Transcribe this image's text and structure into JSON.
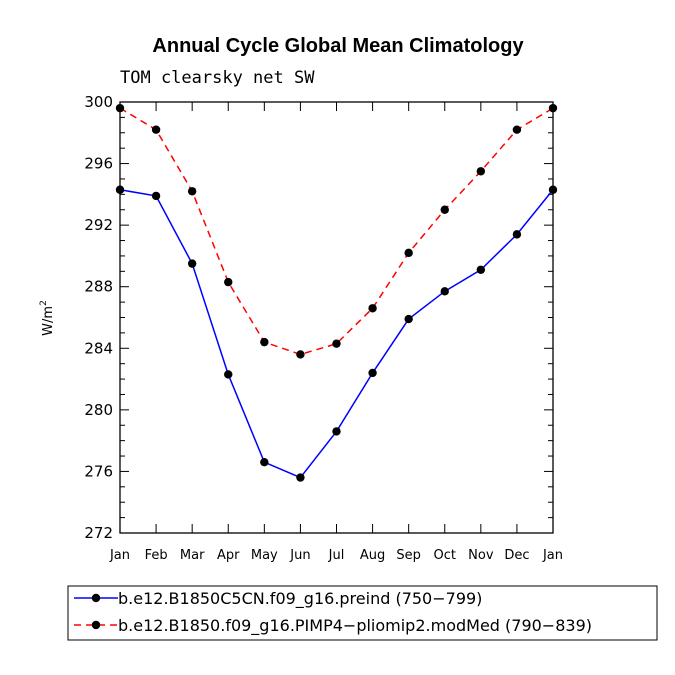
{
  "chart_data": {
    "type": "line",
    "title": "Annual Cycle Global Mean Climatology",
    "subtitle": "TOM clearsky net SW",
    "ylabel": "W/m",
    "ylabel_superscript": "2",
    "xlabel": "",
    "ylim": [
      272,
      300
    ],
    "yticks": [
      272,
      276,
      280,
      284,
      288,
      292,
      296,
      300
    ],
    "y_minor_step": 1,
    "categories": [
      "Jan",
      "Feb",
      "Mar",
      "Apr",
      "May",
      "Jun",
      "Jul",
      "Aug",
      "Sep",
      "Oct",
      "Nov",
      "Dec",
      "Jan"
    ],
    "grid": false,
    "legend_position": "bottom",
    "series": [
      {
        "name": "b.e12.B1850C5CN.f09_g16.preind (750−799)",
        "color": "#0000ff",
        "dash": "solid",
        "marker": "filled-circle",
        "values": [
          294.3,
          293.9,
          289.5,
          282.3,
          276.6,
          275.6,
          278.6,
          282.4,
          285.9,
          287.7,
          289.1,
          291.4,
          294.3
        ]
      },
      {
        "name": "b.e12.B1850.f09_g16.PIMP4−pliomip2.modMed (790−839)",
        "color": "#ff0000",
        "dash": "dashed",
        "marker": "filled-circle",
        "values": [
          299.6,
          298.2,
          294.2,
          288.3,
          284.4,
          283.6,
          284.3,
          286.6,
          290.2,
          293.0,
          295.5,
          298.2,
          299.6
        ]
      }
    ]
  }
}
